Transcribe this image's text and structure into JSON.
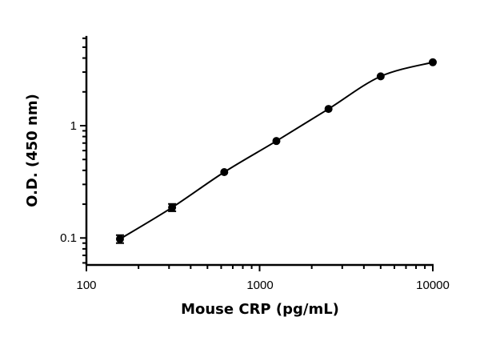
{
  "chart_data": {
    "type": "scatter",
    "title": "",
    "xlabel": "Mouse CRP (pg/mL)",
    "ylabel": "O.D. (450 nm)",
    "xscale": "log",
    "yscale": "log",
    "xlim": [
      100,
      10000
    ],
    "ylim": [
      0.058,
      6.3
    ],
    "xticks": [
      "100",
      "1000",
      "10000"
    ],
    "yticks": [
      "0.1",
      "1"
    ],
    "grid": false,
    "legend": "none",
    "fit_curve": true,
    "color": "#000000",
    "series": [
      {
        "x": [
          156.25,
          312.5,
          625,
          1250,
          2500,
          5000,
          10000
        ],
        "y": [
          0.098,
          0.187,
          0.386,
          0.73,
          1.41,
          2.75,
          3.67
        ],
        "error": [
          0.008,
          0.014,
          0.01,
          0.01,
          0.02,
          0.03,
          0.03
        ]
      }
    ]
  }
}
